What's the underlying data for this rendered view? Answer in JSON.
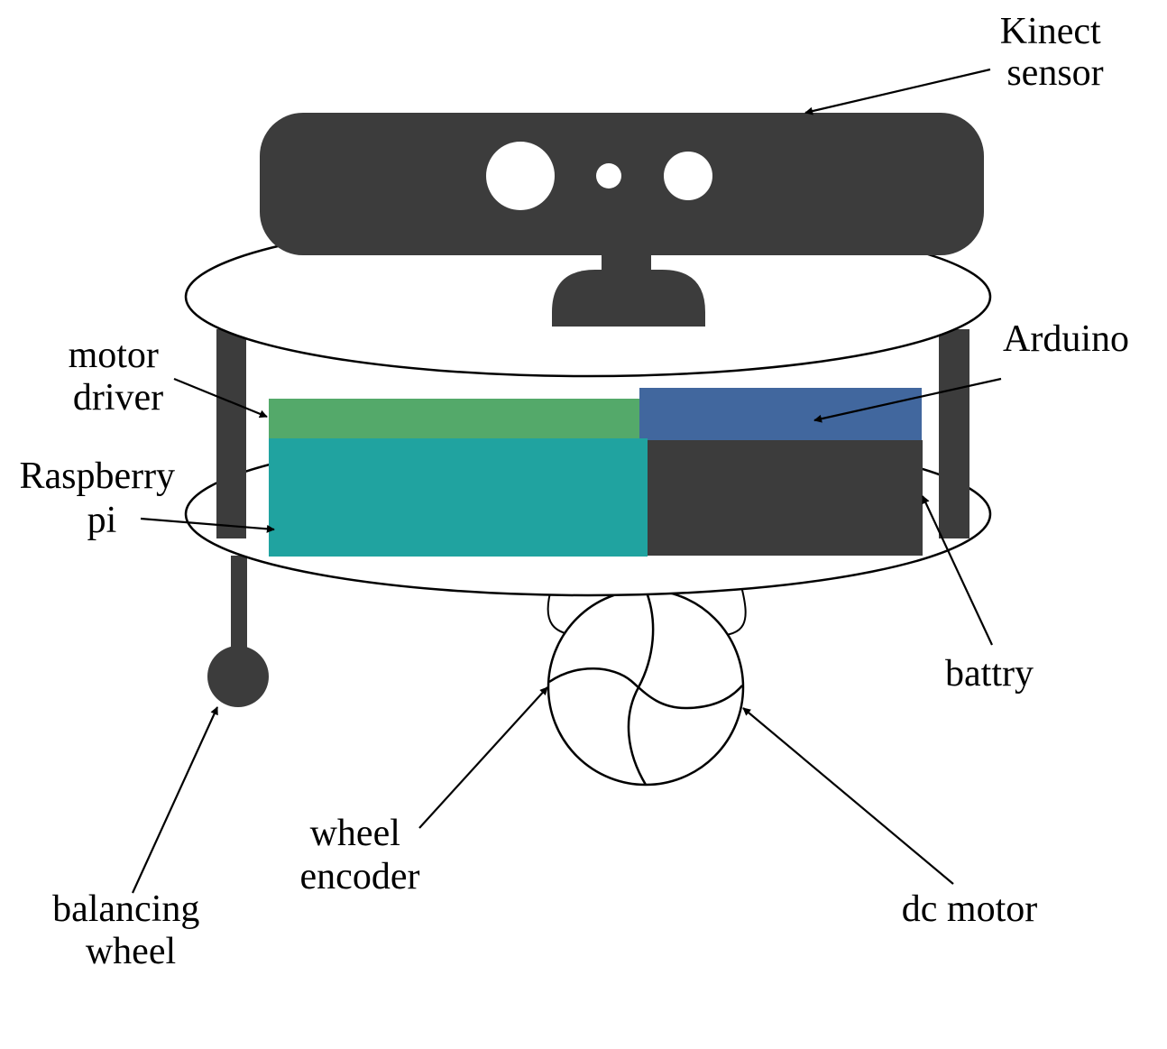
{
  "diagram": {
    "colors": {
      "dark": "#3c3c3c",
      "motor_driver": "#54a96a",
      "arduino": "#41679e",
      "raspberry_pi": "#20a3a0",
      "outline": "#000000",
      "background": "#ffffff"
    },
    "labels": {
      "kinect": [
        "Kinect",
        "sensor"
      ],
      "arduino": [
        "Arduino"
      ],
      "motor_driver": [
        "motor",
        "driver"
      ],
      "raspberry_pi": [
        "Raspberry",
        "pi"
      ],
      "battery": [
        "battry"
      ],
      "wheel_encoder": [
        "wheel",
        "encoder"
      ],
      "dc_motor": [
        "dc motor"
      ],
      "balancing_wheel": [
        "balancing",
        "wheel"
      ]
    }
  }
}
